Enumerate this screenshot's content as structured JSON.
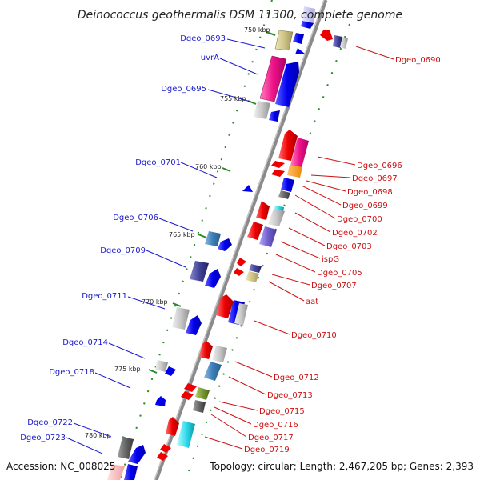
{
  "title": "Deinococcus geothermalis DSM 11300, complete genome",
  "footer": {
    "accession": "Accession: NC_008025",
    "summary": "Topology: circular; Length: 2,467,205 bp; Genes: 2,393"
  },
  "kbp_marks": [
    "750 kbp",
    "755 kbp",
    "760 kbp",
    "765 kbp",
    "770 kbp",
    "775 kbp",
    "780 kbp"
  ],
  "left_labels": [
    "Dgeo_0693",
    "uvrA",
    "Dgeo_0695",
    "Dgeo_0701",
    "Dgeo_0706",
    "Dgeo_0709",
    "Dgeo_0711",
    "Dgeo_0714",
    "Dgeo_0718",
    "Dgeo_0722",
    "Dgeo_0723"
  ],
  "right_labels": [
    "Dgeo_0690",
    "Dgeo_0696",
    "Dgeo_0697",
    "Dgeo_0698",
    "Dgeo_0699",
    "Dgeo_0700",
    "Dgeo_0702",
    "Dgeo_0703",
    "ispG",
    "Dgeo_0705",
    "Dgeo_0707",
    "aat",
    "Dgeo_0710",
    "Dgeo_0712",
    "Dgeo_0713",
    "Dgeo_0715",
    "Dgeo_0716",
    "Dgeo_0717",
    "Dgeo_0719"
  ],
  "colors": {
    "forward_label": "#1a1acc",
    "reverse_label": "#cc1111",
    "backbone": "#888888",
    "tick": "#2a8a2a"
  }
}
